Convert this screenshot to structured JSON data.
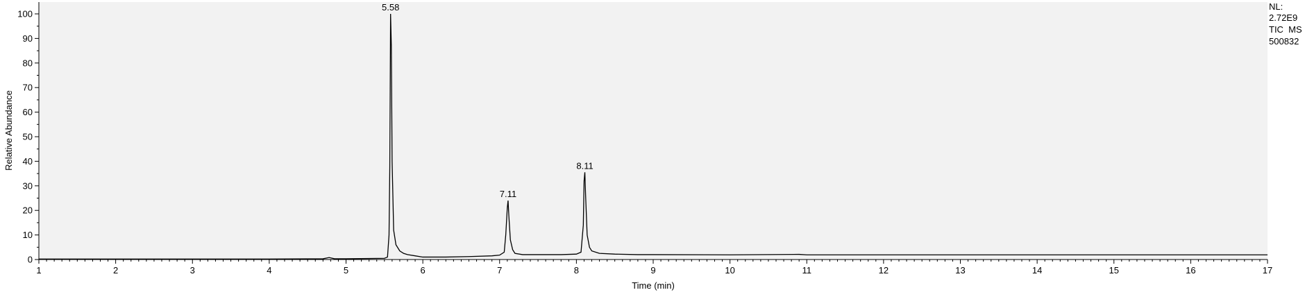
{
  "chart_data": {
    "type": "line",
    "title": "",
    "xlabel": "Time (min)",
    "ylabel": "Relative Abundance",
    "xlim": [
      1,
      17
    ],
    "ylim": [
      0,
      100
    ],
    "x_ticks": [
      1,
      2,
      3,
      4,
      5,
      6,
      7,
      8,
      9,
      10,
      11,
      12,
      13,
      14,
      15,
      16,
      17
    ],
    "y_ticks": [
      0,
      10,
      20,
      30,
      40,
      50,
      60,
      70,
      80,
      90,
      100
    ],
    "grid": false,
    "colors": {
      "plot_background": "#f2f2f2",
      "trace": "#000000",
      "axes": "#000000"
    },
    "series": [
      {
        "x": [
          1.0,
          2.0,
          3.0,
          4.0,
          4.7,
          4.78,
          4.85,
          5.0,
          5.3,
          5.5,
          5.54,
          5.56,
          5.57,
          5.58,
          5.59,
          5.6,
          5.62,
          5.65,
          5.7,
          5.75,
          5.8,
          5.9,
          6.0,
          6.3,
          6.6,
          6.9,
          7.0,
          7.06,
          7.08,
          7.1,
          7.11,
          7.12,
          7.14,
          7.17,
          7.2,
          7.3,
          7.5,
          7.8,
          8.0,
          8.06,
          8.09,
          8.1,
          8.11,
          8.12,
          8.14,
          8.17,
          8.2,
          8.3,
          8.5,
          8.8,
          9.0,
          10.0,
          10.9,
          11.0,
          12.0,
          13.0,
          14.0,
          15.0,
          16.0,
          17.0
        ],
        "y": [
          0.2,
          0.2,
          0.2,
          0.2,
          0.3,
          0.8,
          0.3,
          0.3,
          0.4,
          0.5,
          1.0,
          10.0,
          38.0,
          100.0,
          87.0,
          40.0,
          12.0,
          6.0,
          3.5,
          2.5,
          2.0,
          1.5,
          1.0,
          1.0,
          1.2,
          1.5,
          1.8,
          3.0,
          10.0,
          21.0,
          24.0,
          18.0,
          8.0,
          4.0,
          2.5,
          2.0,
          2.0,
          2.0,
          2.2,
          3.0,
          14.0,
          32.0,
          35.5,
          26.0,
          10.0,
          5.0,
          3.5,
          2.5,
          2.2,
          2.0,
          2.0,
          1.9,
          2.1,
          1.9,
          1.9,
          1.9,
          1.9,
          1.9,
          1.9,
          1.9
        ]
      }
    ],
    "peak_labels": [
      {
        "x": 5.58,
        "y": 100,
        "text": "5.58"
      },
      {
        "x": 7.11,
        "y": 24,
        "text": "7.11"
      },
      {
        "x": 8.11,
        "y": 35.5,
        "text": "8.11"
      }
    ]
  },
  "info": {
    "lines": [
      "NL:",
      "2.72E9",
      "TIC  MS",
      "500832"
    ]
  }
}
